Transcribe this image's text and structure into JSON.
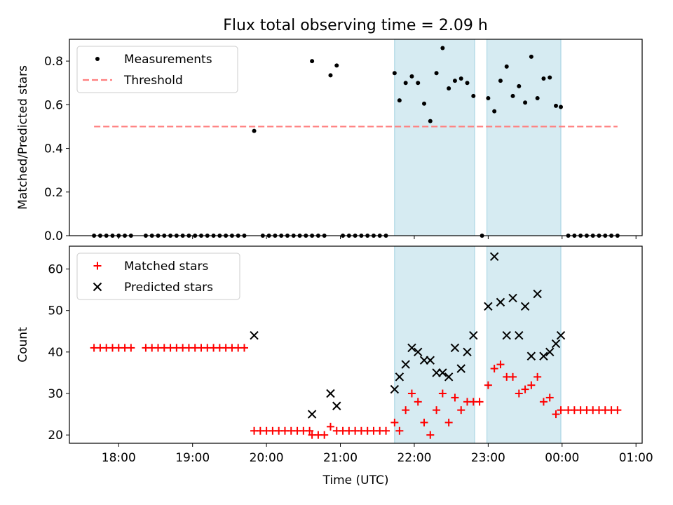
{
  "title": "Flux total observing time = 2.09 h",
  "chart_data": [
    {
      "type": "scatter",
      "panel": "top",
      "title": "Flux total observing time = 2.09 h",
      "xlabel": "",
      "ylabel": "Matched/Predicted stars",
      "ylim": [
        0.0,
        0.9
      ],
      "yticks": [
        "0.0",
        "0.2",
        "0.4",
        "0.6",
        "0.8"
      ],
      "xlim": [
        "17:20",
        "01:05"
      ],
      "xticks": [
        "18:00",
        "19:00",
        "20:00",
        "21:00",
        "22:00",
        "23:00",
        "00:00",
        "01:00"
      ],
      "shaded_intervals": [
        [
          "21:44",
          "22:49"
        ],
        [
          "22:59",
          "23:59"
        ]
      ],
      "threshold": 0.5,
      "threshold_range": [
        "17:40",
        "00:45"
      ],
      "legend": {
        "position": "top-left",
        "entries": [
          "Measurements",
          "Threshold"
        ]
      },
      "series": [
        {
          "name": "Measurements",
          "marker": "dot",
          "color": "#000000",
          "points": [
            [
              "17:40",
              0
            ],
            [
              "17:45",
              0
            ],
            [
              "17:50",
              0
            ],
            [
              "17:55",
              0
            ],
            [
              "18:00",
              0
            ],
            [
              "18:05",
              0
            ],
            [
              "18:10",
              0
            ],
            [
              "18:22",
              0
            ],
            [
              "18:27",
              0
            ],
            [
              "18:32",
              0
            ],
            [
              "18:37",
              0
            ],
            [
              "18:42",
              0
            ],
            [
              "18:47",
              0
            ],
            [
              "18:52",
              0
            ],
            [
              "18:57",
              0
            ],
            [
              "19:02",
              0
            ],
            [
              "19:07",
              0
            ],
            [
              "19:12",
              0
            ],
            [
              "19:17",
              0
            ],
            [
              "19:22",
              0
            ],
            [
              "19:27",
              0
            ],
            [
              "19:32",
              0
            ],
            [
              "19:37",
              0
            ],
            [
              "19:42",
              0
            ],
            [
              "19:50",
              0.48
            ],
            [
              "19:57",
              0
            ],
            [
              "20:02",
              0
            ],
            [
              "20:07",
              0
            ],
            [
              "20:12",
              0
            ],
            [
              "20:17",
              0
            ],
            [
              "20:22",
              0
            ],
            [
              "20:27",
              0
            ],
            [
              "20:32",
              0
            ],
            [
              "20:37",
              0
            ],
            [
              "20:37",
              0.8
            ],
            [
              "20:42",
              0
            ],
            [
              "20:47",
              0
            ],
            [
              "20:52",
              0.735
            ],
            [
              "20:57",
              0.78
            ],
            [
              "21:02",
              0
            ],
            [
              "21:07",
              0
            ],
            [
              "21:12",
              0
            ],
            [
              "21:17",
              0
            ],
            [
              "21:22",
              0
            ],
            [
              "21:27",
              0
            ],
            [
              "21:32",
              0
            ],
            [
              "21:37",
              0
            ],
            [
              "21:44",
              0.745
            ],
            [
              "21:48",
              0.62
            ],
            [
              "21:53",
              0.7
            ],
            [
              "21:58",
              0.73
            ],
            [
              "22:03",
              0.7
            ],
            [
              "22:08",
              0.605
            ],
            [
              "22:13",
              0.525
            ],
            [
              "22:18",
              0.745
            ],
            [
              "22:23",
              0.86
            ],
            [
              "22:28",
              0.675
            ],
            [
              "22:33",
              0.71
            ],
            [
              "22:38",
              0.72
            ],
            [
              "22:43",
              0.7
            ],
            [
              "22:48",
              0.64
            ],
            [
              "22:55",
              0
            ],
            [
              "23:00",
              0.63
            ],
            [
              "23:05",
              0.57
            ],
            [
              "23:10",
              0.71
            ],
            [
              "23:15",
              0.775
            ],
            [
              "23:20",
              0.64
            ],
            [
              "23:25",
              0.685
            ],
            [
              "23:30",
              0.61
            ],
            [
              "23:35",
              0.82
            ],
            [
              "23:40",
              0.63
            ],
            [
              "23:45",
              0.72
            ],
            [
              "23:50",
              0.725
            ],
            [
              "23:55",
              0.595
            ],
            [
              "23:59",
              0.59
            ],
            [
              "00:05",
              0
            ],
            [
              "00:10",
              0
            ],
            [
              "00:15",
              0
            ],
            [
              "00:20",
              0
            ],
            [
              "00:25",
              0
            ],
            [
              "00:30",
              0
            ],
            [
              "00:35",
              0
            ],
            [
              "00:40",
              0
            ],
            [
              "00:45",
              0
            ]
          ]
        },
        {
          "name": "Threshold",
          "marker": "dashed-line",
          "color": "#ff7f7f",
          "points": [
            [
              "17:40",
              0.5
            ],
            [
              "00:45",
              0.5
            ]
          ]
        }
      ]
    },
    {
      "type": "scatter",
      "panel": "bottom",
      "xlabel": "Time (UTC)",
      "ylabel": "Count",
      "ylim": [
        18,
        65.5
      ],
      "yticks": [
        "20",
        "30",
        "40",
        "50",
        "60"
      ],
      "xlim": [
        "17:20",
        "01:05"
      ],
      "xticks": [
        "18:00",
        "19:00",
        "20:00",
        "21:00",
        "22:00",
        "23:00",
        "00:00",
        "01:00"
      ],
      "shaded_intervals": [
        [
          "21:44",
          "22:49"
        ],
        [
          "22:59",
          "23:59"
        ]
      ],
      "legend": {
        "position": "top-left",
        "entries": [
          "Matched stars",
          "Predicted stars"
        ]
      },
      "series": [
        {
          "name": "Matched stars",
          "marker": "plus",
          "color": "#ff0000",
          "points": [
            [
              "17:40",
              41
            ],
            [
              "17:45",
              41
            ],
            [
              "17:50",
              41
            ],
            [
              "17:55",
              41
            ],
            [
              "18:00",
              41
            ],
            [
              "18:05",
              41
            ],
            [
              "18:10",
              41
            ],
            [
              "18:22",
              41
            ],
            [
              "18:27",
              41
            ],
            [
              "18:32",
              41
            ],
            [
              "18:37",
              41
            ],
            [
              "18:42",
              41
            ],
            [
              "18:47",
              41
            ],
            [
              "18:52",
              41
            ],
            [
              "18:57",
              41
            ],
            [
              "19:02",
              41
            ],
            [
              "19:07",
              41
            ],
            [
              "19:12",
              41
            ],
            [
              "19:17",
              41
            ],
            [
              "19:22",
              41
            ],
            [
              "19:27",
              41
            ],
            [
              "19:32",
              41
            ],
            [
              "19:37",
              41
            ],
            [
              "19:42",
              41
            ],
            [
              "19:50",
              21
            ],
            [
              "19:55",
              21
            ],
            [
              "20:00",
              21
            ],
            [
              "20:05",
              21
            ],
            [
              "20:10",
              21
            ],
            [
              "20:15",
              21
            ],
            [
              "20:20",
              21
            ],
            [
              "20:25",
              21
            ],
            [
              "20:30",
              21
            ],
            [
              "20:35",
              21
            ],
            [
              "20:37",
              20
            ],
            [
              "20:42",
              20
            ],
            [
              "20:47",
              20
            ],
            [
              "20:52",
              22
            ],
            [
              "20:57",
              21
            ],
            [
              "21:02",
              21
            ],
            [
              "21:07",
              21
            ],
            [
              "21:12",
              21
            ],
            [
              "21:17",
              21
            ],
            [
              "21:22",
              21
            ],
            [
              "21:27",
              21
            ],
            [
              "21:32",
              21
            ],
            [
              "21:37",
              21
            ],
            [
              "21:44",
              23
            ],
            [
              "21:48",
              21
            ],
            [
              "21:53",
              26
            ],
            [
              "21:58",
              30
            ],
            [
              "22:03",
              28
            ],
            [
              "22:08",
              23
            ],
            [
              "22:13",
              20
            ],
            [
              "22:18",
              26
            ],
            [
              "22:23",
              30
            ],
            [
              "22:28",
              23
            ],
            [
              "22:33",
              29
            ],
            [
              "22:38",
              26
            ],
            [
              "22:43",
              28
            ],
            [
              "22:48",
              28
            ],
            [
              "22:53",
              28
            ],
            [
              "23:00",
              32
            ],
            [
              "23:05",
              36
            ],
            [
              "23:10",
              37
            ],
            [
              "23:15",
              34
            ],
            [
              "23:20",
              34
            ],
            [
              "23:25",
              30
            ],
            [
              "23:30",
              31
            ],
            [
              "23:35",
              32
            ],
            [
              "23:40",
              34
            ],
            [
              "23:45",
              28
            ],
            [
              "23:50",
              29
            ],
            [
              "23:55",
              25
            ],
            [
              "23:59",
              26
            ],
            [
              "00:05",
              26
            ],
            [
              "00:10",
              26
            ],
            [
              "00:15",
              26
            ],
            [
              "00:20",
              26
            ],
            [
              "00:25",
              26
            ],
            [
              "00:30",
              26
            ],
            [
              "00:35",
              26
            ],
            [
              "00:40",
              26
            ],
            [
              "00:45",
              26
            ]
          ]
        },
        {
          "name": "Predicted stars",
          "marker": "x",
          "color": "#000000",
          "points": [
            [
              "19:50",
              44
            ],
            [
              "20:37",
              25
            ],
            [
              "20:52",
              30
            ],
            [
              "20:57",
              27
            ],
            [
              "21:44",
              31
            ],
            [
              "21:48",
              34
            ],
            [
              "21:53",
              37
            ],
            [
              "21:58",
              41
            ],
            [
              "22:03",
              40
            ],
            [
              "22:08",
              38
            ],
            [
              "22:13",
              38
            ],
            [
              "22:18",
              35
            ],
            [
              "22:23",
              35
            ],
            [
              "22:28",
              34
            ],
            [
              "22:33",
              41
            ],
            [
              "22:38",
              36
            ],
            [
              "22:43",
              40
            ],
            [
              "22:48",
              44
            ],
            [
              "23:00",
              51
            ],
            [
              "23:05",
              63
            ],
            [
              "23:10",
              52
            ],
            [
              "23:15",
              44
            ],
            [
              "23:20",
              53
            ],
            [
              "23:25",
              44
            ],
            [
              "23:30",
              51
            ],
            [
              "23:35",
              39
            ],
            [
              "23:40",
              54
            ],
            [
              "23:45",
              39
            ],
            [
              "23:50",
              40
            ],
            [
              "23:55",
              42
            ],
            [
              "23:59",
              44
            ]
          ]
        }
      ]
    }
  ]
}
